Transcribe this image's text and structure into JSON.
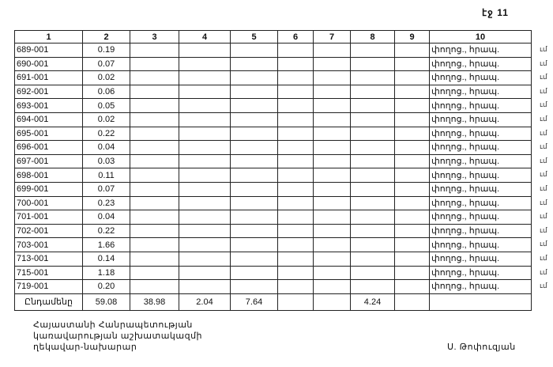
{
  "page_label": "էջ 11",
  "table": {
    "headers": [
      "1",
      "2",
      "3",
      "4",
      "5",
      "6",
      "7",
      "8",
      "9",
      "10"
    ],
    "rows": [
      {
        "id": "689-001",
        "c2": "0.19",
        "c10": "փողոց., հրապ."
      },
      {
        "id": "690-001",
        "c2": "0.07",
        "c10": "փողոց., հրապ."
      },
      {
        "id": "691-001",
        "c2": "0.02",
        "c10": "փողոց., հրապ."
      },
      {
        "id": "692-001",
        "c2": "0.06",
        "c10": "փողոց., հրապ."
      },
      {
        "id": "693-001",
        "c2": "0.05",
        "c10": "փողոց., հրապ."
      },
      {
        "id": "694-001",
        "c2": "0.02",
        "c10": "փողոց., հրապ."
      },
      {
        "id": "695-001",
        "c2": "0.22",
        "c10": "փողոց., հրապ."
      },
      {
        "id": "696-001",
        "c2": "0.04",
        "c10": "փողոց., հրապ."
      },
      {
        "id": "697-001",
        "c2": "0.03",
        "c10": "փողոց., հրապ."
      },
      {
        "id": "698-001",
        "c2": "0.11",
        "c10": "փողոց., հրապ."
      },
      {
        "id": "699-001",
        "c2": "0.07",
        "c10": "փողոց., հրապ."
      },
      {
        "id": "700-001",
        "c2": "0.23",
        "c10": "փողոց., հրապ."
      },
      {
        "id": "701-001",
        "c2": "0.04",
        "c10": "փողոց., հրապ."
      },
      {
        "id": "702-001",
        "c2": "0.22",
        "c10": "փողոց., հրապ."
      },
      {
        "id": "703-001",
        "c2": "1.66",
        "c10": "փողոց., հրապ."
      },
      {
        "id": "713-001",
        "c2": "0.14",
        "c10": "փողոց., հրապ."
      },
      {
        "id": "715-001",
        "c2": "1.18",
        "c10": "փողոց., հրապ."
      },
      {
        "id": "719-001",
        "c2": "0.20",
        "c10": "փողոց., հրապ."
      }
    ],
    "total": {
      "label": "Ընդամենը",
      "c2": "59.08",
      "c3": "38.98",
      "c4": "2.04",
      "c5": "7.64",
      "c6": "",
      "c7": "",
      "c8": "4.24",
      "c9": "",
      "c10": ""
    },
    "margin_mark": "ւմ"
  },
  "signature": {
    "title_lines": [
      "Հայաստանի Հանրապետության",
      "կառավարության աշխատակազմի",
      "ղեկավար-նախարար"
    ],
    "name": "Ս. Թոփուզյան"
  }
}
